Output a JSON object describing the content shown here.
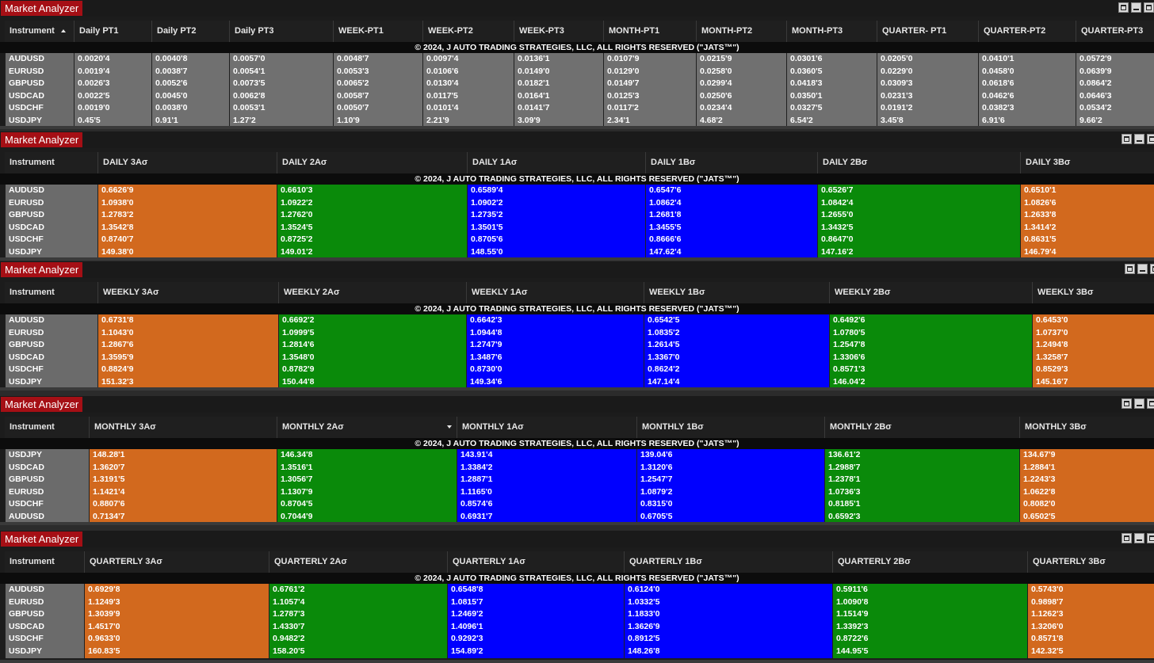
{
  "copyright": "© 2024, J AUTO TRADING STRATEGIES, LLC, ALL RIGHTS RESERVED (\"JATS™\")",
  "colors": {
    "orange": "#d2691e",
    "green": "#0a8a0a",
    "blue": "#0000ff",
    "grey": "#707070",
    "title_red": "#a50f15"
  },
  "panels": [
    {
      "title": "Market Analyzer",
      "instrument_header": "Instrument",
      "instruments": [
        "AUDUSD",
        "EURUSD",
        "GBPUSD",
        "USDCAD",
        "USDCHF",
        "USDJPY"
      ],
      "columns": [
        {
          "header": "Daily PT1",
          "color": "grey",
          "values": [
            "0.0020'4",
            "0.0019'4",
            "0.0026'3",
            "0.0022'5",
            "0.0019'0",
            "0.45'5"
          ]
        },
        {
          "header": "Daily PT2",
          "color": "grey",
          "values": [
            "0.0040'8",
            "0.0038'7",
            "0.0052'6",
            "0.0045'0",
            "0.0038'0",
            "0.91'1"
          ]
        },
        {
          "header": "Daily PT3",
          "color": "grey",
          "values": [
            "0.0057'0",
            "0.0054'1",
            "0.0073'5",
            "0.0062'8",
            "0.0053'1",
            "1.27'2"
          ]
        },
        {
          "header": "WEEK-PT1",
          "color": "grey",
          "values": [
            "0.0048'7",
            "0.0053'3",
            "0.0065'2",
            "0.0058'7",
            "0.0050'7",
            "1.10'9"
          ]
        },
        {
          "header": "WEEK-PT2",
          "color": "grey",
          "values": [
            "0.0097'4",
            "0.0106'6",
            "0.0130'4",
            "0.0117'5",
            "0.0101'4",
            "2.21'9"
          ]
        },
        {
          "header": "WEEK-PT3",
          "color": "grey",
          "values": [
            "0.0136'1",
            "0.0149'0",
            "0.0182'1",
            "0.0164'1",
            "0.0141'7",
            "3.09'9"
          ]
        },
        {
          "header": "MONTH-PT1",
          "color": "grey",
          "values": [
            "0.0107'9",
            "0.0129'0",
            "0.0149'7",
            "0.0125'3",
            "0.0117'2",
            "2.34'1"
          ]
        },
        {
          "header": "MONTH-PT2",
          "color": "grey",
          "values": [
            "0.0215'9",
            "0.0258'0",
            "0.0299'4",
            "0.0250'6",
            "0.0234'4",
            "4.68'2"
          ]
        },
        {
          "header": "MONTH-PT3",
          "color": "grey",
          "values": [
            "0.0301'6",
            "0.0360'5",
            "0.0418'3",
            "0.0350'1",
            "0.0327'5",
            "6.54'2"
          ]
        },
        {
          "header": "QUARTER- PT1",
          "color": "grey",
          "values": [
            "0.0205'0",
            "0.0229'0",
            "0.0309'3",
            "0.0231'3",
            "0.0191'2",
            "3.45'8"
          ]
        },
        {
          "header": "QUARTER-PT2",
          "color": "grey",
          "values": [
            "0.0410'1",
            "0.0458'0",
            "0.0618'6",
            "0.0462'6",
            "0.0382'3",
            "6.91'6"
          ]
        },
        {
          "header": "QUARTER-PT3",
          "color": "grey",
          "values": [
            "0.0572'9",
            "0.0639'9",
            "0.0864'2",
            "0.0646'3",
            "0.0534'2",
            "9.66'2"
          ]
        }
      ]
    },
    {
      "title": "Market Analyzer",
      "instrument_header": "Instrument",
      "instruments": [
        "AUDUSD",
        "EURUSD",
        "GBPUSD",
        "USDCAD",
        "USDCHF",
        "USDJPY"
      ],
      "columns": [
        {
          "header": "DAILY 3Aσ",
          "color": "orange",
          "values": [
            "0.6626'9",
            "1.0938'0",
            "1.2783'2",
            "1.3542'8",
            "0.8740'7",
            "149.38'0"
          ]
        },
        {
          "header": "DAILY 2Aσ",
          "color": "green",
          "values": [
            "0.6610'3",
            "1.0922'2",
            "1.2762'0",
            "1.3524'5",
            "0.8725'2",
            "149.01'2"
          ]
        },
        {
          "header": "DAILY 1Aσ",
          "color": "blue",
          "values": [
            "0.6589'4",
            "1.0902'2",
            "1.2735'2",
            "1.3501'5",
            "0.8705'6",
            "148.55'0"
          ]
        },
        {
          "header": "DAILY 1Bσ",
          "color": "blue",
          "values": [
            "0.6547'6",
            "1.0862'4",
            "1.2681'8",
            "1.3455'5",
            "0.8666'6",
            "147.62'4"
          ]
        },
        {
          "header": "DAILY 2Bσ",
          "color": "green",
          "values": [
            "0.6526'7",
            "1.0842'4",
            "1.2655'0",
            "1.3432'5",
            "0.8647'0",
            "147.16'2"
          ]
        },
        {
          "header": "DAILY 3Bσ",
          "color": "orange",
          "values": [
            "0.6510'1",
            "1.0826'6",
            "1.2633'8",
            "1.3414'2",
            "0.8631'5",
            "146.79'4"
          ]
        }
      ]
    },
    {
      "title": "Market Analyzer",
      "instrument_header": "Instrument",
      "instruments": [
        "AUDUSD",
        "EURUSD",
        "GBPUSD",
        "USDCAD",
        "USDCHF",
        "USDJPY"
      ],
      "columns": [
        {
          "header": "WEEKLY 3Aσ",
          "color": "orange",
          "values": [
            "0.6731'8",
            "1.1043'0",
            "1.2867'6",
            "1.3595'9",
            "0.8824'9",
            "151.32'3"
          ]
        },
        {
          "header": "WEEKLY 2Aσ",
          "color": "green",
          "values": [
            "0.6692'2",
            "1.0999'5",
            "1.2814'6",
            "1.3548'0",
            "0.8782'9",
            "150.44'8"
          ]
        },
        {
          "header": "WEEKLY 1Aσ",
          "color": "blue",
          "values": [
            "0.6642'3",
            "1.0944'8",
            "1.2747'9",
            "1.3487'6",
            "0.8730'0",
            "149.34'6"
          ]
        },
        {
          "header": "WEEKLY 1Bσ",
          "color": "blue",
          "values": [
            "0.6542'5",
            "1.0835'2",
            "1.2614'5",
            "1.3367'0",
            "0.8624'2",
            "147.14'4"
          ]
        },
        {
          "header": "WEEKLY 2Bσ",
          "color": "green",
          "values": [
            "0.6492'6",
            "1.0780'5",
            "1.2547'8",
            "1.3306'6",
            "0.8571'3",
            "146.04'2"
          ]
        },
        {
          "header": "WEEKLY 3Bσ",
          "color": "orange",
          "values": [
            "0.6453'0",
            "1.0737'0",
            "1.2494'8",
            "1.3258'7",
            "0.8529'3",
            "145.16'7"
          ]
        }
      ]
    },
    {
      "title": "Market Analyzer",
      "instrument_header": "Instrument",
      "instruments": [
        "USDJPY",
        "USDCAD",
        "GBPUSD",
        "EURUSD",
        "USDCHF",
        "AUDUSD"
      ],
      "columns": [
        {
          "header": "MONTHLY 3Aσ",
          "color": "orange",
          "values": [
            "148.28'1",
            "1.3620'7",
            "1.3191'5",
            "1.1421'4",
            "0.8807'6",
            "0.7134'7"
          ]
        },
        {
          "header": "MONTHLY 2Aσ",
          "color": "green",
          "values": [
            "146.34'8",
            "1.3516'1",
            "1.3056'7",
            "1.1307'9",
            "0.8704'5",
            "0.7044'9"
          ]
        },
        {
          "header": "MONTHLY 1Aσ",
          "color": "blue",
          "values": [
            "143.91'4",
            "1.3384'2",
            "1.2887'1",
            "1.1165'0",
            "0.8574'6",
            "0.6931'7"
          ]
        },
        {
          "header": "MONTHLY 1Bσ",
          "color": "blue",
          "values": [
            "139.04'6",
            "1.3120'6",
            "1.2547'7",
            "1.0879'2",
            "0.8315'0",
            "0.6705'5"
          ]
        },
        {
          "header": "MONTHLY 2Bσ",
          "color": "green",
          "values": [
            "136.61'2",
            "1.2988'7",
            "1.2378'1",
            "1.0736'3",
            "0.8185'1",
            "0.6592'3"
          ]
        },
        {
          "header": "MONTHLY 3Bσ",
          "color": "orange",
          "values": [
            "134.67'9",
            "1.2884'1",
            "1.2243'3",
            "1.0622'8",
            "0.8082'0",
            "0.6502'5"
          ]
        }
      ]
    },
    {
      "title": "Market Analyzer",
      "instrument_header": "Instrument",
      "instruments": [
        "AUDUSD",
        "EURUSD",
        "GBPUSD",
        "USDCAD",
        "USDCHF",
        "USDJPY"
      ],
      "columns": [
        {
          "header": "QUARTERLY 3Aσ",
          "color": "orange",
          "values": [
            "0.6929'8",
            "1.1249'3",
            "1.3039'9",
            "1.4517'0",
            "0.9633'0",
            "160.83'5"
          ]
        },
        {
          "header": "QUARTERLY 2Aσ",
          "color": "green",
          "values": [
            "0.6761'2",
            "1.1057'4",
            "1.2787'3",
            "1.4330'7",
            "0.9482'2",
            "158.20'5"
          ]
        },
        {
          "header": "QUARTERLY 1Aσ",
          "color": "blue",
          "values": [
            "0.6548'8",
            "1.0815'7",
            "1.2469'2",
            "1.4096'1",
            "0.9292'3",
            "154.89'2"
          ]
        },
        {
          "header": "QUARTERLY 1Bσ",
          "color": "blue",
          "values": [
            "0.6124'0",
            "1.0332'5",
            "1.1833'0",
            "1.3626'9",
            "0.8912'5",
            "148.26'8"
          ]
        },
        {
          "header": "QUARTERLY 2Bσ",
          "color": "green",
          "values": [
            "0.5911'6",
            "1.0090'8",
            "1.1514'9",
            "1.3392'3",
            "0.8722'6",
            "144.95'5"
          ]
        },
        {
          "header": "QUARTERLY 3Bσ",
          "color": "orange",
          "values": [
            "0.5743'0",
            "0.9898'7",
            "1.1262'3",
            "1.3206'0",
            "0.8571'8",
            "142.32'5"
          ]
        }
      ]
    }
  ]
}
